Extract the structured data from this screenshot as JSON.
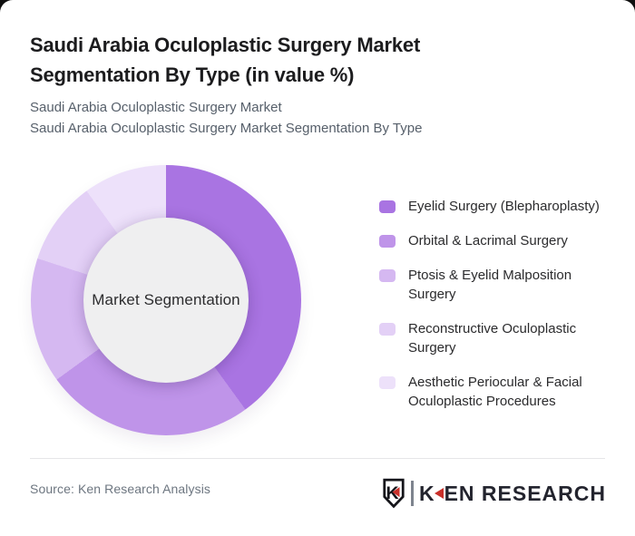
{
  "page": {
    "background_color": "#0f0f0f",
    "card_color": "#ffffff"
  },
  "header": {
    "title": "Saudi Arabia Oculoplastic Surgery Market Segmentation By Type (in value %)",
    "title_lines": [
      "Saudi Arabia Oculoplastic Surgery Market",
      "Segmentation By Type (in value %)"
    ],
    "subtitle_lines": [
      "Saudi Arabia Oculoplastic Surgery Market",
      "Saudi Arabia Oculoplastic Surgery Market Segmentation By Type"
    ]
  },
  "chart_data": {
    "type": "pie",
    "variant": "donut",
    "title": "Saudi Arabia Oculoplastic Surgery Market Segmentation By Type (in value %)",
    "unit": "value %",
    "center_label": "Market Segmentation",
    "hole_color": "#EFEFF0",
    "legend_position": "right",
    "start_angle_deg": 0,
    "segments": [
      {
        "label": "Eyelid Surgery (Blepharoplasty)",
        "value": 40,
        "color": "#A974E2"
      },
      {
        "label": "Orbital & Lacrimal Surgery",
        "value": 25,
        "color": "#BF94E9"
      },
      {
        "label": "Ptosis & Eyelid Malposition Surgery",
        "value": 15,
        "color": "#D5B8F1"
      },
      {
        "label": "Reconstructive Oculoplastic Surgery",
        "value": 10,
        "color": "#E3D0F6"
      },
      {
        "label": "Aesthetic Periocular & Facial Oculoplastic Procedures",
        "value": 10,
        "color": "#EDE1FA"
      }
    ]
  },
  "footer": {
    "source": "Source: Ken Research Analysis",
    "logo": {
      "brand": "KEN RESEARCH",
      "first_letter": "K",
      "rest": "EN RESEARCH",
      "shield_letter": "K",
      "accent_color": "#C9302A",
      "text_color": "#23242E"
    }
  }
}
